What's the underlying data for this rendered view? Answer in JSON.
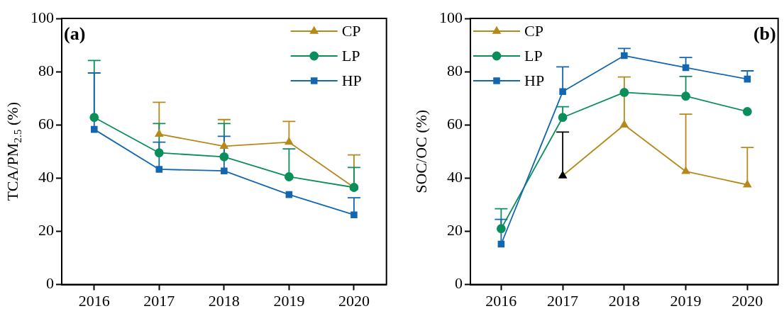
{
  "chart_data": [
    {
      "type": "line",
      "ylabel": "TCA/PM$_{2.5}$ (%)",
      "categories": [
        "2016",
        "2017",
        "2018",
        "2019",
        "2020"
      ],
      "ylim": [
        0,
        100
      ],
      "yticks": [
        0,
        20,
        40,
        60,
        80,
        100
      ],
      "legend": "top right",
      "annotations": [
        "(a)"
      ],
      "series": [
        {
          "name": "CP",
          "color": "#b5891a",
          "marker": "triangle",
          "values": [
            null,
            56.5,
            52,
            53.5,
            36.5
          ],
          "errors": [
            null,
            [
              56.5,
              68.5
            ],
            [
              52,
              62
            ],
            [
              53.5,
              61.3
            ],
            [
              36.5,
              48.7
            ]
          ]
        },
        {
          "name": "LP",
          "color": "#0b8f5a",
          "marker": "circle",
          "values": [
            62.8,
            49.5,
            48,
            40.5,
            36.5
          ],
          "errors": [
            [
              62.8,
              84.2
            ],
            [
              49.5,
              60.5
            ],
            [
              48,
              60.5
            ],
            [
              40.5,
              51
            ],
            [
              36.5,
              44
            ]
          ]
        },
        {
          "name": "HP",
          "color": "#1367b0",
          "marker": "square",
          "values": [
            58.3,
            43.3,
            42.7,
            33.8,
            26.2
          ],
          "errors": [
            [
              58.3,
              79.5
            ],
            [
              43.3,
              53.5
            ],
            [
              42.7,
              55.7
            ],
            null,
            [
              26.2,
              32.6
            ]
          ]
        }
      ]
    },
    {
      "type": "line",
      "ylabel": "SOC/OC (%)",
      "categories": [
        "2016",
        "2017",
        "2018",
        "2019",
        "2020"
      ],
      "ylim": [
        0,
        100
      ],
      "yticks": [
        0,
        20,
        40,
        60,
        80,
        100
      ],
      "legend": "top left",
      "annotations": [
        "(b)"
      ],
      "series": [
        {
          "name": "CP",
          "color": "#b5891a",
          "colors": [
            "#b5891a",
            "#000000",
            "#b5891a",
            "#b5891a",
            "#b5891a"
          ],
          "marker": "triangle",
          "values": [
            null,
            40.9,
            60,
            42.5,
            37.5
          ],
          "errors": [
            null,
            [
              40.9,
              57.3
            ],
            [
              60,
              78
            ],
            [
              42.5,
              64
            ],
            [
              37.5,
              51.5
            ]
          ]
        },
        {
          "name": "LP",
          "color": "#0b8f5a",
          "marker": "circle",
          "values": [
            21,
            62.8,
            72.2,
            70.8,
            65
          ],
          "errors": [
            [
              21,
              28.5
            ],
            [
              62.8,
              66.8
            ],
            null,
            [
              70.8,
              78.2
            ],
            null
          ]
        },
        {
          "name": "HP",
          "color": "#1367b0",
          "marker": "square",
          "values": [
            15.2,
            72.5,
            86,
            81.5,
            77.2
          ],
          "errors": [
            [
              15.2,
              24.5
            ],
            [
              72.5,
              81.8
            ],
            [
              86,
              88.7
            ],
            [
              81.5,
              85.3
            ],
            [
              77.2,
              80.3
            ]
          ]
        }
      ]
    }
  ]
}
